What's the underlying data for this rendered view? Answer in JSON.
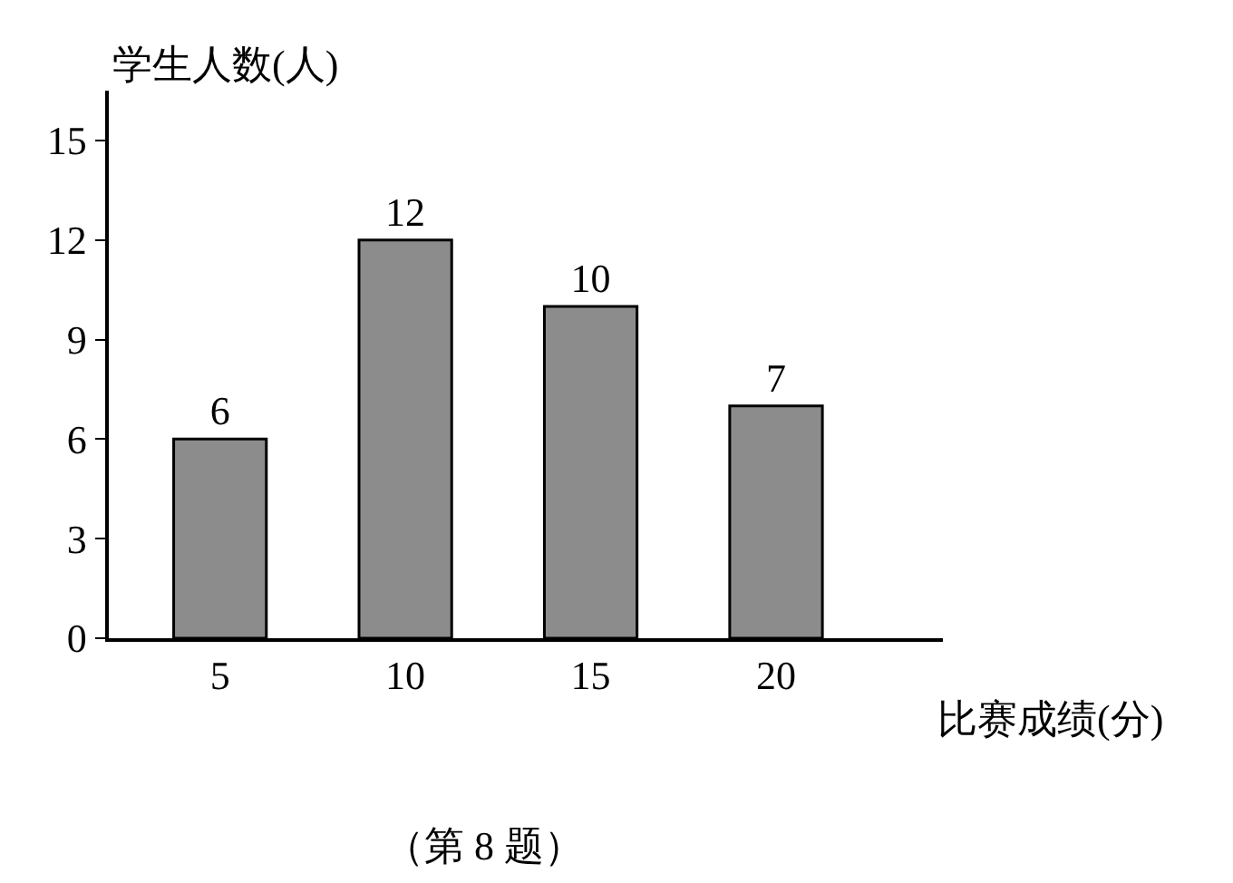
{
  "chart_data": {
    "type": "bar",
    "xlabel": "比赛成绩(分)",
    "ylabel": "学生人数(人)",
    "categories": [
      "5",
      "10",
      "15",
      "20"
    ],
    "values": [
      6,
      12,
      10,
      7
    ],
    "color": "#8c8c8c",
    "ylim": [
      0,
      16.5
    ],
    "yticks": [
      0,
      3,
      6,
      9,
      12,
      15
    ],
    "data_labels": true,
    "annotations": [
      "（第 8 题）"
    ]
  }
}
